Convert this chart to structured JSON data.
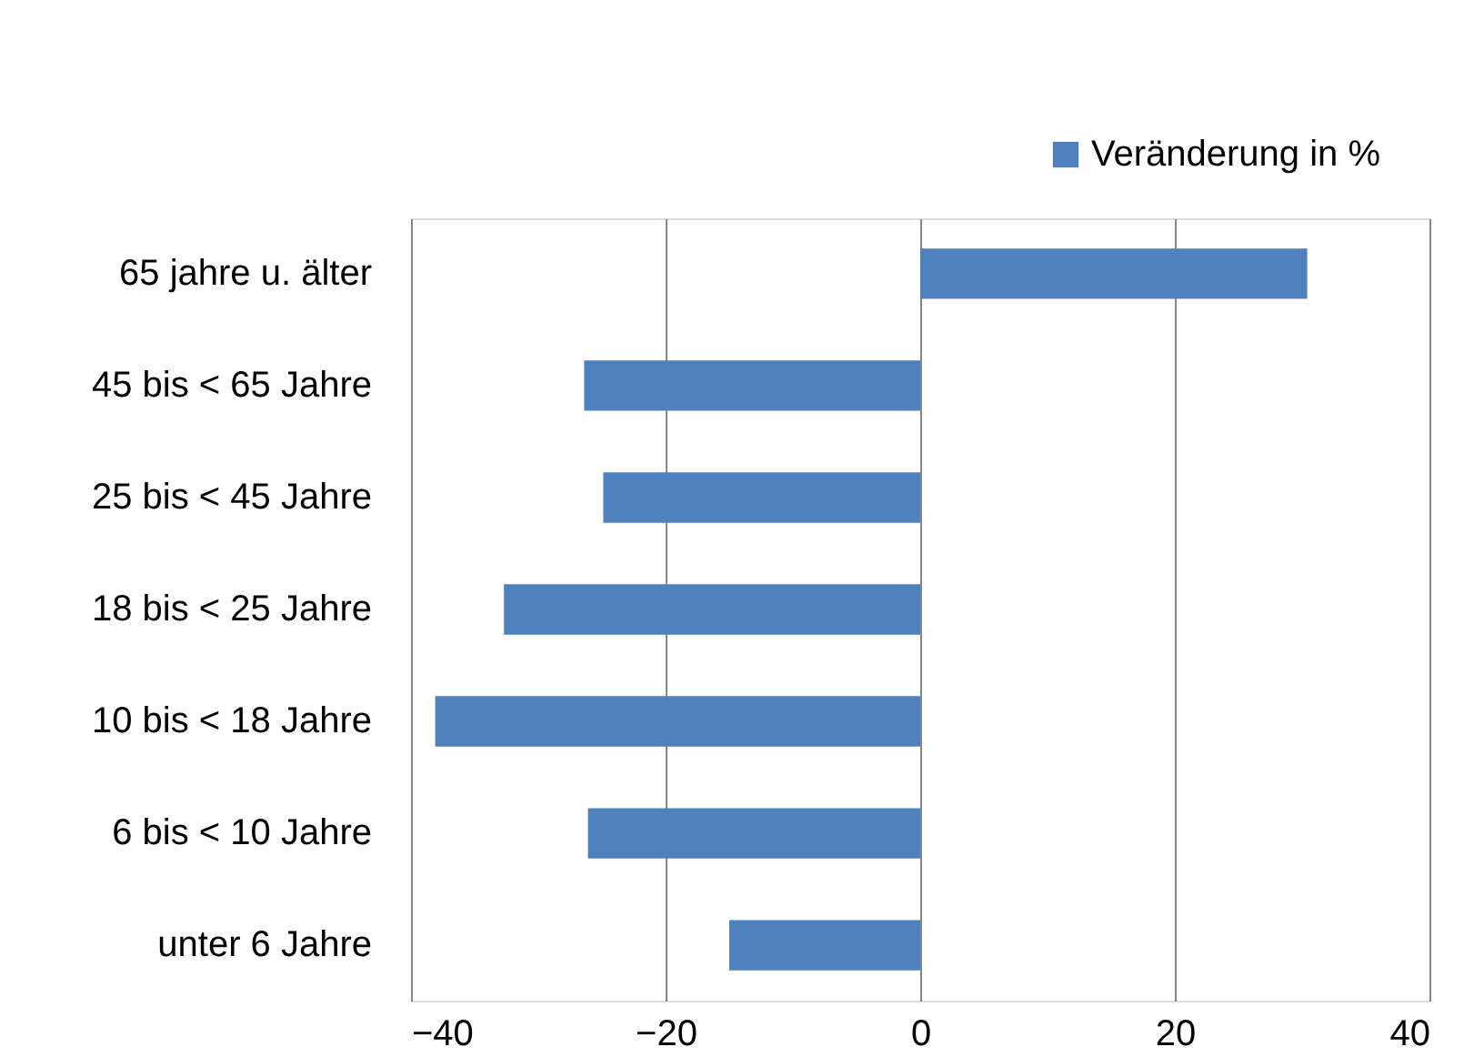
{
  "chart_data": {
    "type": "bar",
    "orientation": "horizontal",
    "categories": [
      "65 jahre u. älter",
      "45 bis < 65 Jahre",
      "25 bis < 45 Jahre",
      "18 bis < 25 Jahre",
      "10 bis < 18 Jahre",
      "6 bis < 10 Jahre",
      "unter 6 Jahre"
    ],
    "series": [
      {
        "name": "Veränderung in %",
        "color": "#4f81bd",
        "values": [
          30.4,
          -26.4,
          -24.9,
          -32.7,
          -38.1,
          -26.1,
          -15.0
        ]
      }
    ],
    "xlim": [
      -40,
      40
    ],
    "xticks": [
      -40,
      -20,
      0,
      20,
      40
    ],
    "grid": "x",
    "legend": "top right"
  }
}
